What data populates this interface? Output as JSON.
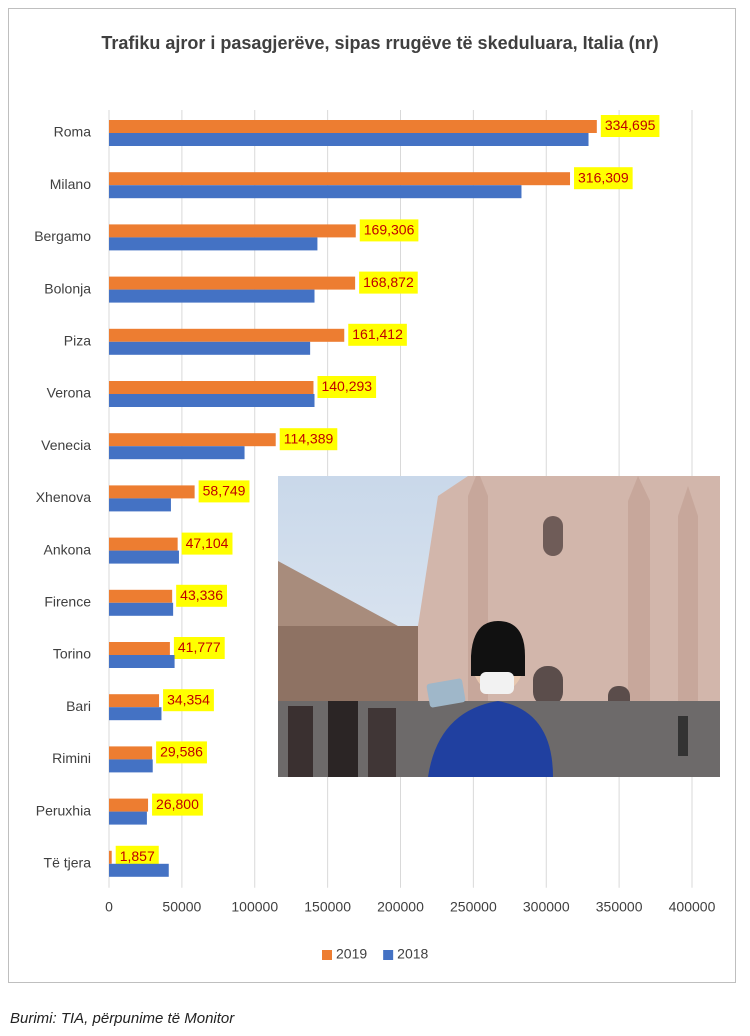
{
  "chart_data": {
    "type": "hbar",
    "title": "Trafiku ajror i pasagjerëve, sipas rrugëve të skeduluara, Italia (nr)",
    "categories": [
      "Roma",
      "Milano",
      "Bergamo",
      "Bolonja",
      "Piza",
      "Verona",
      "Venecia",
      "Xhenova",
      "Ankona",
      "Firence",
      "Torino",
      "Bari",
      "Rimini",
      "Peruxhia",
      "Të tjera"
    ],
    "series": [
      {
        "name": "2019",
        "color": "#ed7d31",
        "values": [
          334695,
          316309,
          169306,
          168872,
          161412,
          140293,
          114389,
          58749,
          47104,
          43336,
          41777,
          34354,
          29586,
          26800,
          1857
        ],
        "value_labels": [
          "334,695",
          "316,309",
          "169,306",
          "168,872",
          "161,412",
          "140,293",
          "114,389",
          "58,749",
          "47,104",
          "43,336",
          "41,777",
          "34,354",
          "29,586",
          "26,800",
          "1,857"
        ]
      },
      {
        "name": "2018",
        "color": "#4472c4",
        "values": [
          329000,
          283000,
          143000,
          141000,
          138000,
          141000,
          93000,
          42500,
          48000,
          44000,
          45000,
          36000,
          30000,
          26000,
          41000
        ]
      }
    ],
    "xlim": [
      0,
      400000
    ],
    "xticks": [
      0,
      50000,
      100000,
      150000,
      200000,
      250000,
      300000,
      350000,
      400000
    ],
    "grid": true,
    "legend": "bottom"
  },
  "source": "Burimi: TIA, përpunime të Monitor"
}
